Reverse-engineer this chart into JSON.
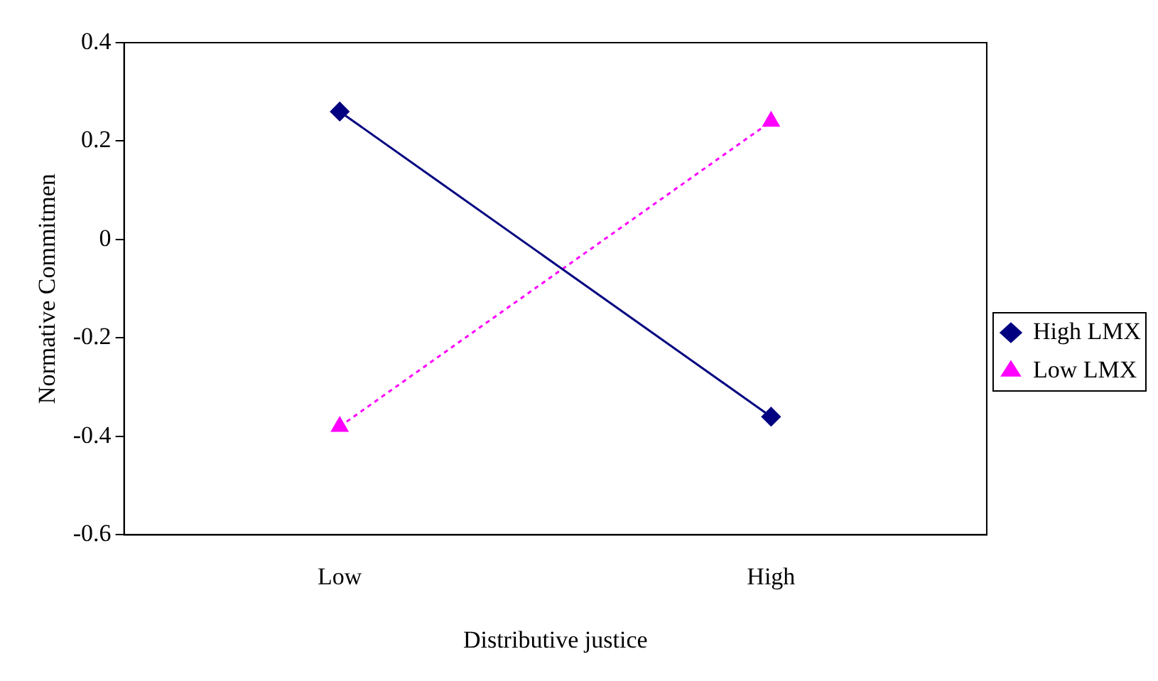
{
  "chart_data": {
    "type": "line",
    "xlabel": "Distributive justice",
    "ylabel": "Normative Commitmen",
    "categories": [
      "Low",
      "High"
    ],
    "series": [
      {
        "name": "High LMX",
        "color": "#000080",
        "values": [
          0.26,
          -0.36
        ],
        "marker": "diamond",
        "line_style": "solid"
      },
      {
        "name": "Low LMX",
        "color": "#ff00ff",
        "values": [
          -0.38,
          0.24
        ],
        "marker": "triangle",
        "line_style": "dotted"
      }
    ],
    "ylim": [
      -0.6,
      0.4
    ],
    "yticks": [
      -0.6,
      -0.4,
      -0.2,
      0,
      0.2,
      0.4
    ],
    "grid": false,
    "legend": "right"
  }
}
